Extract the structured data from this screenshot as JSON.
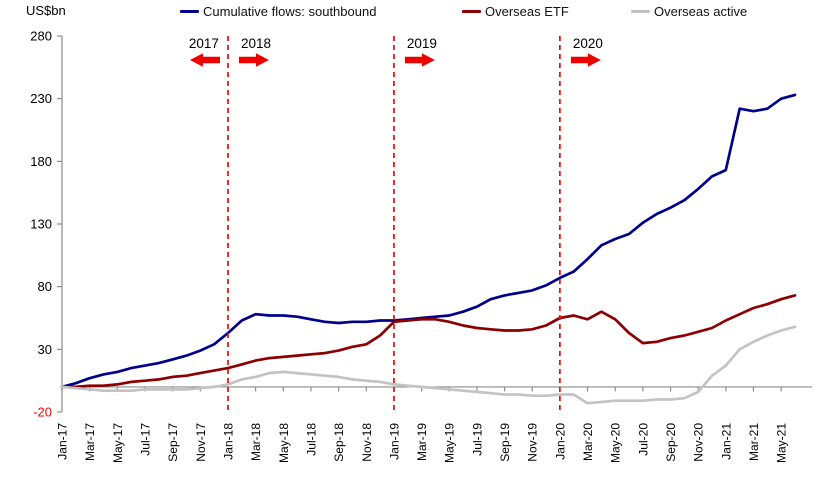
{
  "header": {
    "units_label": "US$bn"
  },
  "chart_data": {
    "type": "line",
    "title": "",
    "ylabel": "US$bn",
    "xlabel": "",
    "ylim": [
      -20,
      280
    ],
    "yticks": [
      280,
      230,
      180,
      130,
      80,
      30,
      -20
    ],
    "xtick_every": 2,
    "grid": false,
    "legend_position": "top",
    "axis_color": "#8c8c8c",
    "text_color": "#000000",
    "negative_tick_color": "#ff0000",
    "x_categories": [
      "Jan-17",
      "Feb-17",
      "Mar-17",
      "Apr-17",
      "May-17",
      "Jun-17",
      "Jul-17",
      "Aug-17",
      "Sep-17",
      "Oct-17",
      "Nov-17",
      "Dec-17",
      "Jan-18",
      "Feb-18",
      "Mar-18",
      "Apr-18",
      "May-18",
      "Jun-18",
      "Jul-18",
      "Aug-18",
      "Sep-18",
      "Oct-18",
      "Nov-18",
      "Dec-18",
      "Jan-19",
      "Feb-19",
      "Mar-19",
      "Apr-19",
      "May-19",
      "Jun-19",
      "Jul-19",
      "Aug-19",
      "Sep-19",
      "Oct-19",
      "Nov-19",
      "Dec-19",
      "Jan-20",
      "Feb-20",
      "Mar-20",
      "Apr-20",
      "May-20",
      "Jun-20",
      "Jul-20",
      "Aug-20",
      "Sep-20",
      "Oct-20",
      "Nov-20",
      "Dec-20",
      "Jan-21",
      "Feb-21",
      "Mar-21",
      "Apr-21",
      "May-21",
      "Jun-21"
    ],
    "series": [
      {
        "id": "southbound",
        "name": "Cumulative flows: southbound",
        "color": "#00008b",
        "values": [
          0,
          3,
          7,
          10,
          12,
          15,
          17,
          19,
          22,
          25,
          29,
          34,
          43,
          53,
          58,
          57,
          57,
          56,
          54,
          52,
          51,
          52,
          52,
          53,
          53,
          54,
          55,
          56,
          57,
          60,
          64,
          70,
          73,
          75,
          77,
          81,
          87,
          92,
          102,
          113,
          118,
          122,
          131,
          138,
          143,
          149,
          158,
          168,
          173,
          222,
          220,
          222,
          230,
          233
        ]
      },
      {
        "id": "overseas-etf",
        "name": "Overseas ETF",
        "color": "#8b0000",
        "values": [
          0,
          0,
          1,
          1,
          2,
          4,
          5,
          6,
          8,
          9,
          11,
          13,
          15,
          18,
          21,
          23,
          24,
          25,
          26,
          27,
          29,
          32,
          34,
          41,
          52,
          53,
          54,
          54,
          52,
          49,
          47,
          46,
          45,
          45,
          46,
          49,
          55,
          57,
          54,
          60,
          54,
          43,
          35,
          36,
          39,
          41,
          44,
          47,
          53,
          58,
          63,
          66,
          70,
          73
        ]
      },
      {
        "id": "overseas-active",
        "name": "Overseas active",
        "color": "#c3c3c3",
        "values": [
          0,
          -1,
          -2,
          -3,
          -3,
          -3,
          -2,
          -2,
          -2,
          -2,
          -1,
          0,
          2,
          6,
          8,
          11,
          12,
          11,
          10,
          9,
          8,
          6,
          5,
          4,
          2,
          1,
          0,
          -1,
          -2,
          -3,
          -4,
          -5,
          -6,
          -6,
          -7,
          -7,
          -6,
          -6,
          -13,
          -12,
          -11,
          -11,
          -11,
          -10,
          -10,
          -9,
          -4,
          9,
          17,
          30,
          36,
          41,
          45,
          48
        ]
      }
    ],
    "annotations": {
      "divider_months": [
        "Jan-18",
        "Jan-19",
        "Jan-20"
      ],
      "divider_color": "#ff0000",
      "arrow_color": "#ee0000",
      "years": [
        {
          "label": "2017",
          "month": "Jan-18",
          "side": "left",
          "arrow": "left"
        },
        {
          "label": "2018",
          "month": "Jan-18",
          "side": "right",
          "arrow": "right"
        },
        {
          "label": "2019",
          "month": "Jan-19",
          "side": "right",
          "arrow": "right"
        },
        {
          "label": "2020",
          "month": "Jan-20",
          "side": "right",
          "arrow": "right"
        }
      ]
    }
  }
}
